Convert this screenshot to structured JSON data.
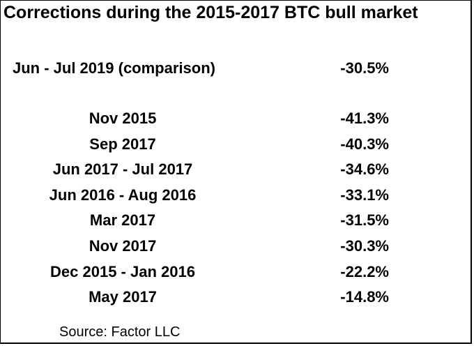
{
  "chart_data": {
    "type": "table",
    "title": "Corrections during the 2015-2017 BTC bull market",
    "comparison": {
      "period": "Jun - Jul 2019 (comparison)",
      "correction": "-30.5%",
      "value": -30.5
    },
    "rows": [
      {
        "period": "Nov 2015",
        "correction": "-41.3%",
        "value": -41.3
      },
      {
        "period": "Sep 2017",
        "correction": "-40.3%",
        "value": -40.3
      },
      {
        "period": "Jun 2017 - Jul 2017",
        "correction": "-34.6%",
        "value": -34.6
      },
      {
        "period": "Jun 2016 - Aug 2016",
        "correction": "-33.1%",
        "value": -33.1
      },
      {
        "period": "Mar 2017",
        "correction": "-31.5%",
        "value": -31.5
      },
      {
        "period": "Nov 2017",
        "correction": "-30.3%",
        "value": -30.3
      },
      {
        "period": "Dec 2015 - Jan 2016",
        "correction": "-22.2%",
        "value": -22.2
      },
      {
        "period": "May 2017",
        "correction": "-14.8%",
        "value": -14.8
      }
    ],
    "source": "Source: Factor LLC"
  }
}
